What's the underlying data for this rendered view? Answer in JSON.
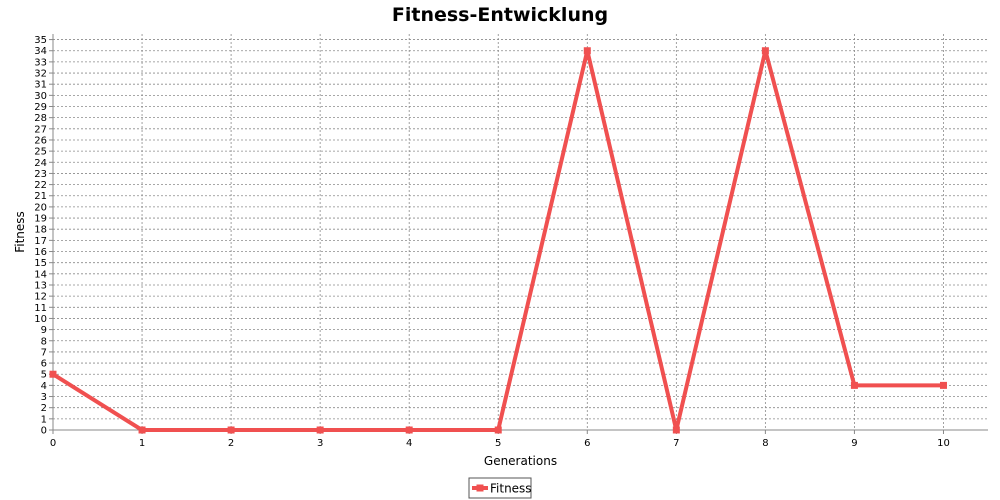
{
  "chart_data": {
    "type": "line",
    "title": "Fitness-Entwicklung",
    "xlabel": "Generations",
    "ylabel": "Fitness",
    "xlim": [
      0,
      10.5
    ],
    "ylim": [
      0,
      35.5
    ],
    "x_ticks": [
      0,
      1,
      2,
      3,
      4,
      5,
      6,
      7,
      8,
      9,
      10
    ],
    "y_ticks": [
      0,
      1,
      2,
      3,
      4,
      5,
      6,
      7,
      8,
      9,
      10,
      11,
      12,
      13,
      14,
      15,
      16,
      17,
      18,
      19,
      20,
      21,
      22,
      23,
      24,
      25,
      26,
      27,
      28,
      29,
      30,
      31,
      32,
      33,
      34,
      35
    ],
    "grid": true,
    "legend_position": "bottom-center",
    "series": [
      {
        "name": "Fitness",
        "color": "#f05050",
        "x": [
          0,
          1,
          2,
          3,
          4,
          5,
          6,
          7,
          8,
          9,
          10
        ],
        "y": [
          5,
          0,
          0,
          0,
          0,
          0,
          34,
          0,
          34,
          4,
          4
        ]
      }
    ]
  }
}
